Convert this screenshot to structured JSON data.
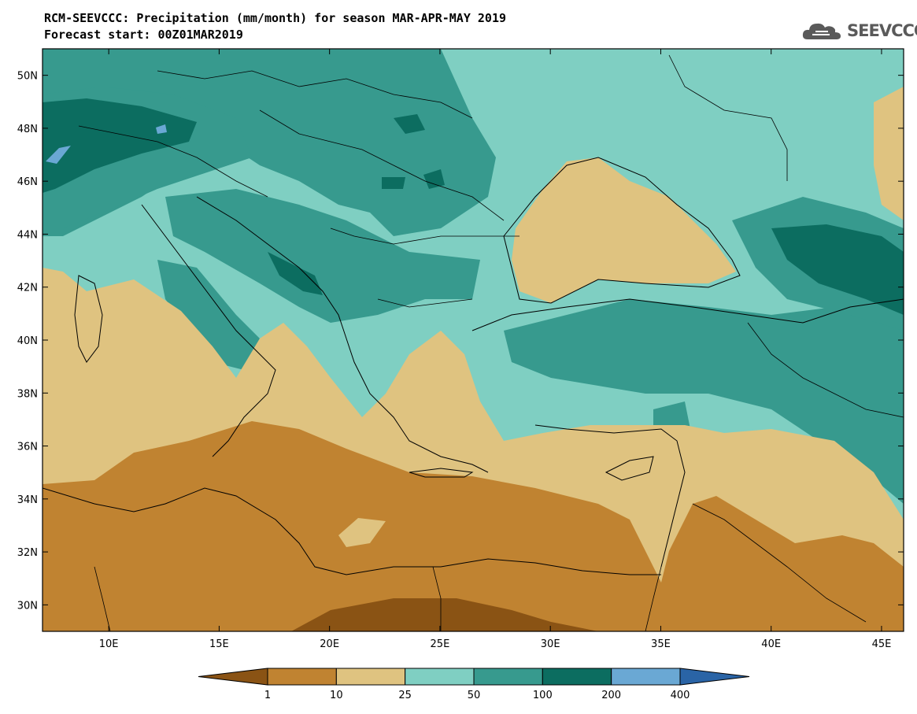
{
  "header": {
    "title": "RCM-SEEVCCC: Precipitation (mm/month) for season MAR-APR-MAY 2019",
    "subtitle": "Forecast start: 00Z01MAR2019"
  },
  "logo": {
    "text": "SEEVCCC",
    "icon": "cloud-icon",
    "color": "#5a5a5a"
  },
  "map": {
    "lon_range": [
      7,
      46
    ],
    "lat_range": [
      29,
      51
    ],
    "lon_ticks": [
      "10E",
      "15E",
      "20E",
      "25E",
      "30E",
      "35E",
      "40E",
      "45E"
    ],
    "lat_ticks": [
      "50N",
      "48N",
      "46N",
      "44N",
      "42N",
      "40N",
      "38N",
      "36N",
      "34N",
      "32N",
      "30N"
    ]
  },
  "legend": {
    "levels": [
      "1",
      "10",
      "25",
      "50",
      "100",
      "200",
      "400"
    ],
    "colors": [
      "#8a5314",
      "#c08331",
      "#dfc380",
      "#7fcfc2",
      "#379a8e",
      "#0c6d60",
      "#6aa8d4",
      "#2a64a6"
    ]
  }
}
